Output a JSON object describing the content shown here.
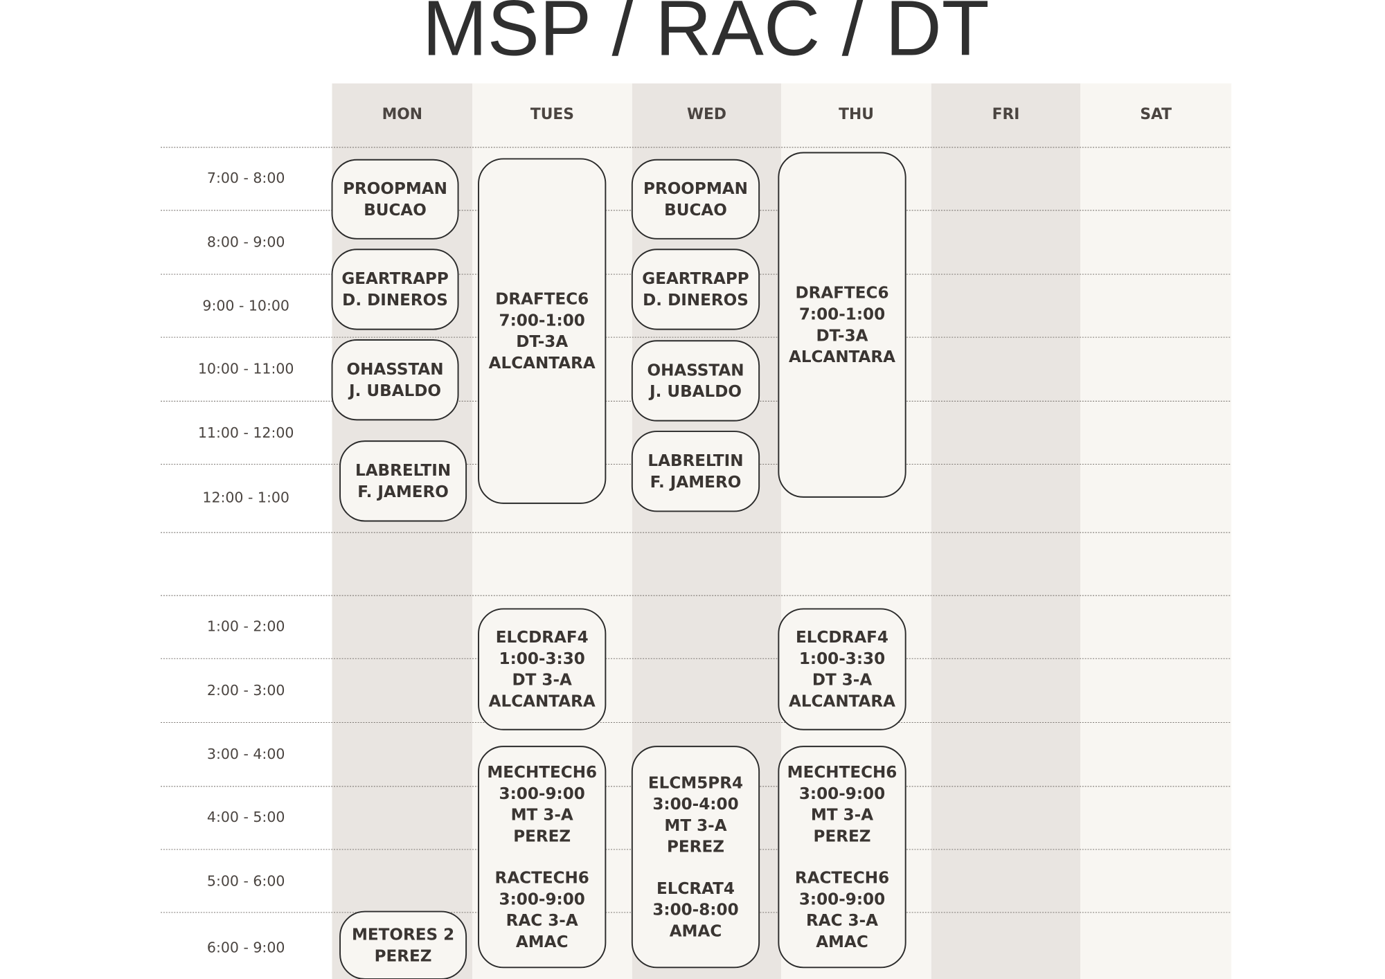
{
  "title": "MSP / RAC / DT",
  "time_slots": [
    "7:00 - 8:00",
    "8:00 - 9:00",
    "9:00 - 10:00",
    "10:00 - 11:00",
    "11:00 - 12:00",
    "12:00 - 1:00",
    "1:00 - 2:00",
    "2:00 - 3:00",
    "3:00 - 4:00",
    "4:00 - 5:00",
    "5:00 - 6:00",
    "6:00 - 9:00"
  ],
  "days": [
    {
      "name": "MON",
      "events": [
        {
          "blocks": [
            [
              "PROOPMAN",
              "BUCAO"
            ]
          ]
        },
        {
          "blocks": [
            [
              "GEARTRAPP",
              "D. DINEROS"
            ]
          ]
        },
        {
          "blocks": [
            [
              "OHASSTAN",
              "J. UBALDO"
            ]
          ]
        },
        {
          "blocks": [
            [
              "LABRELTIN",
              "F. JAMERO"
            ]
          ]
        },
        {
          "blocks": [
            [
              "METORES 2",
              "PEREZ"
            ]
          ]
        }
      ]
    },
    {
      "name": "TUES",
      "events": [
        {
          "blocks": [
            [
              "DRAFTEC6",
              "7:00-1:00",
              "DT-3A",
              "ALCANTARA"
            ]
          ]
        },
        {
          "blocks": [
            [
              "ELCDRAF4",
              "1:00-3:30",
              "DT 3-A",
              "ALCANTARA"
            ]
          ]
        },
        {
          "blocks": [
            [
              "MECHTECH6",
              "3:00-9:00",
              "MT 3-A",
              "PEREZ"
            ],
            [
              "RACTECH6",
              "3:00-9:00",
              "RAC 3-A",
              "AMAC"
            ]
          ]
        }
      ]
    },
    {
      "name": "WED",
      "events": [
        {
          "blocks": [
            [
              "PROOPMAN",
              "BUCAO"
            ]
          ]
        },
        {
          "blocks": [
            [
              "GEARTRAPP",
              "D. DINEROS"
            ]
          ]
        },
        {
          "blocks": [
            [
              "OHASSTAN",
              "J. UBALDO"
            ]
          ]
        },
        {
          "blocks": [
            [
              "LABRELTIN",
              "F. JAMERO"
            ]
          ]
        },
        {
          "blocks": [
            [
              "ELCM5PR4",
              "3:00-4:00",
              "MT 3-A",
              "PEREZ"
            ],
            [
              "ELCRAT4",
              "3:00-8:00",
              "AMAC"
            ]
          ]
        }
      ]
    },
    {
      "name": "THU",
      "events": [
        {
          "blocks": [
            [
              "DRAFTEC6",
              "7:00-1:00",
              "DT-3A",
              "ALCANTARA"
            ]
          ]
        },
        {
          "blocks": [
            [
              "ELCDRAF4",
              "1:00-3:30",
              "DT 3-A",
              "ALCANTARA"
            ]
          ]
        },
        {
          "blocks": [
            [
              "MECHTECH6",
              "3:00-9:00",
              "MT 3-A",
              "PEREZ"
            ],
            [
              "RACTECH6",
              "3:00-9:00",
              "RAC 3-A",
              "AMAC"
            ]
          ]
        }
      ]
    },
    {
      "name": "FRI",
      "events": []
    },
    {
      "name": "SAT",
      "events": []
    }
  ]
}
